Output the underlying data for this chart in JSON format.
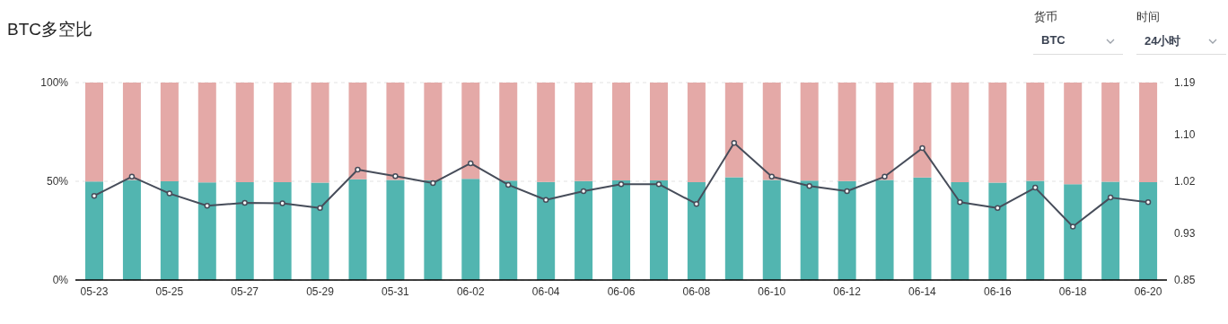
{
  "chart_data": {
    "type": "bar",
    "title": "BTC多空比",
    "annotations": [
      "货币",
      "BTC",
      "时间",
      "24小时"
    ],
    "categories": [
      "05-23",
      null,
      "05-25",
      null,
      "05-27",
      null,
      "05-29",
      null,
      "05-31",
      null,
      "06-02",
      null,
      "06-04",
      null,
      "06-06",
      null,
      "06-08",
      null,
      "06-10",
      null,
      "06-12",
      null,
      "06-14",
      null,
      "06-16",
      null,
      "06-18",
      null,
      "06-20"
    ],
    "stacked": true,
    "grid": "y",
    "legend": false,
    "marker": "circle",
    "line_style": "solid",
    "ylim": [
      0,
      100
    ],
    "yticks": [
      {
        "value": 0,
        "label": "0%"
      },
      {
        "value": 50,
        "label": "50%"
      },
      {
        "value": 100,
        "label": "100%"
      }
    ],
    "y2lim": [
      0.85,
      1.19
    ],
    "y2ticks": [
      0.85,
      0.93,
      1.02,
      {
        "value": 1.1,
        "label": "1.10"
      },
      1.19
    ],
    "series": [
      {
        "color": "#52b5b0",
        "values": [
          49.9,
          50.7,
          50.0,
          49.4,
          49.6,
          49.5,
          49.3,
          51.0,
          50.7,
          50.4,
          51.2,
          50.3,
          49.7,
          50.1,
          50.4,
          50.4,
          49.5,
          52.1,
          50.7,
          50.3,
          50.1,
          50.7,
          51.9,
          49.6,
          49.3,
          50.2,
          48.5,
          49.8,
          49.6
        ]
      },
      {
        "color": "#e4a9a7",
        "values": [
          50.1,
          49.3,
          50.0,
          50.6,
          50.4,
          50.5,
          50.7,
          49.0,
          49.3,
          49.6,
          48.8,
          49.7,
          50.3,
          49.9,
          49.6,
          49.6,
          50.5,
          47.9,
          49.3,
          49.7,
          49.9,
          49.3,
          48.1,
          50.4,
          50.7,
          49.8,
          51.5,
          50.2,
          50.4
        ]
      },
      {
        "type": "line",
        "axis": "y2",
        "color": "#474d5a",
        "values": [
          0.995,
          1.028,
          0.999,
          0.978,
          0.983,
          0.982,
          0.974,
          1.04,
          1.029,
          1.017,
          1.051,
          1.014,
          0.988,
          1.003,
          1.015,
          1.015,
          0.981,
          1.086,
          1.028,
          1.012,
          1.003,
          1.028,
          1.077,
          0.984,
          0.974,
          1.009,
          0.942,
          0.992,
          0.984
        ]
      }
    ]
  }
}
